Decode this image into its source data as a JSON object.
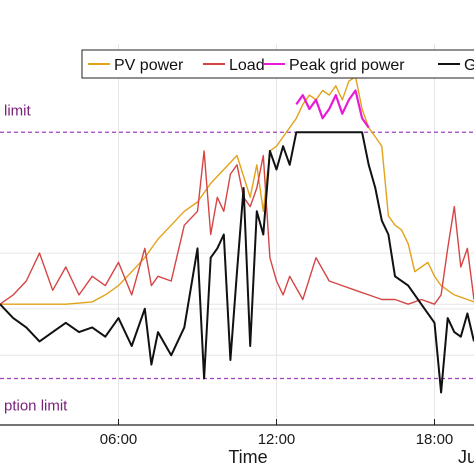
{
  "chart_data": {
    "type": "line",
    "xlabel": "Time",
    "x_tick_labels": [
      "06:00",
      "12:00",
      "18:00"
    ],
    "x_tick_hours": [
      6,
      12,
      18
    ],
    "date_fragment": "Ju",
    "xlim": [
      1.5,
      19.5
    ],
    "ylim": [
      -2.6,
      5.6
    ],
    "limits": [
      {
        "name": "upper-limit",
        "label": "limit",
        "value": 3.7,
        "color": "#a040c0"
      },
      {
        "name": "lower-limit",
        "label": "ption limit",
        "value": -1.6,
        "color": "#a040c0"
      }
    ],
    "gridlines_y": [
      -1.1,
      -0.1,
      0,
      1.1
    ],
    "legend": {
      "placement": "top",
      "entries": [
        {
          "name": "pv-power",
          "label": "PV power",
          "color": "#e3a21a"
        },
        {
          "name": "load",
          "label": "Load",
          "color": "#d64545"
        },
        {
          "name": "peak-grid-power",
          "label": "Peak grid power",
          "color": "#e81ad6"
        },
        {
          "name": "grid",
          "label": "G",
          "color": "#111111"
        }
      ]
    },
    "series": [
      {
        "name": "PV power",
        "color": "#e3a21a",
        "x": [
          1.5,
          4,
          5,
          5.5,
          6,
          6.5,
          7,
          7.5,
          8,
          8.5,
          9,
          9.5,
          10,
          10.5,
          11,
          11.25,
          11.5,
          11.75,
          12,
          12.25,
          12.5,
          12.75,
          13,
          13.25,
          13.5,
          13.75,
          14,
          14.25,
          14.5,
          14.75,
          15,
          15.25,
          15.5,
          15.75,
          16,
          16.25,
          16.5,
          16.75,
          17,
          17.25,
          17.5,
          17.75,
          18,
          18.25,
          18.5,
          18.75,
          19,
          19.25,
          19.5
        ],
        "y": [
          0,
          0,
          0.05,
          0.2,
          0.4,
          0.7,
          1.0,
          1.4,
          1.7,
          2.0,
          2.2,
          2.6,
          2.9,
          3.2,
          2.3,
          3.0,
          2.0,
          3.3,
          3.4,
          3.6,
          3.8,
          4.0,
          4.3,
          4.5,
          4.4,
          4.6,
          4.5,
          4.7,
          4.4,
          4.8,
          4.9,
          4.2,
          3.8,
          3.6,
          3.4,
          1.9,
          1.7,
          1.6,
          1.3,
          0.7,
          0.8,
          0.9,
          0.6,
          0.4,
          0.3,
          0.2,
          0.15,
          0.1,
          0.05
        ]
      },
      {
        "name": "Load",
        "color": "#d64545",
        "x": [
          1.5,
          2,
          2.5,
          3,
          3.5,
          4,
          4.5,
          5,
          5.5,
          6,
          6.5,
          7,
          7.25,
          7.5,
          8,
          8.5,
          9,
          9.25,
          9.5,
          9.75,
          10,
          10.25,
          10.5,
          10.75,
          11,
          11.25,
          11.5,
          11.75,
          12,
          12.25,
          12.5,
          13,
          13.5,
          14,
          14.5,
          15,
          15.5,
          16,
          16.5,
          17,
          17.5,
          18,
          18.25,
          18.5,
          18.75,
          19,
          19.25,
          19.5
        ],
        "y": [
          0,
          0.2,
          0.5,
          1.1,
          0.3,
          0.8,
          0.2,
          0.6,
          0.4,
          0.9,
          0.2,
          1.2,
          0.4,
          0.6,
          0.5,
          1.7,
          2.0,
          3.3,
          1.5,
          2.3,
          2.0,
          2.8,
          3.0,
          2.3,
          2.1,
          2.5,
          3.2,
          1.0,
          0.5,
          0.2,
          0.6,
          0.1,
          1.0,
          0.5,
          0.4,
          0.3,
          0.2,
          0.1,
          0.1,
          0.0,
          0.1,
          0.0,
          0.2,
          1.2,
          2.1,
          0.8,
          1.2,
          0.1
        ]
      },
      {
        "name": "Peak grid power",
        "color": "#e81ad6",
        "x": [
          12.75,
          13,
          13.25,
          13.5,
          13.75,
          14,
          14.25,
          14.5,
          14.75,
          15,
          15.25,
          15.5
        ],
        "y": [
          4.3,
          4.5,
          4.2,
          4.4,
          4.0,
          4.2,
          4.5,
          4.1,
          4.4,
          4.6,
          4.0,
          3.8
        ]
      },
      {
        "name": "Grid",
        "color": "#111111",
        "x": [
          1.5,
          2,
          2.5,
          3,
          3.5,
          4,
          4.5,
          5,
          5.5,
          6,
          6.5,
          7,
          7.25,
          7.5,
          8,
          8.5,
          9,
          9.25,
          9.5,
          9.75,
          10,
          10.25,
          10.5,
          10.75,
          11,
          11.25,
          11.5,
          11.75,
          12,
          12.25,
          12.5,
          12.75,
          13,
          13.5,
          14,
          14.5,
          15,
          15.25,
          15.5,
          15.75,
          16,
          16.25,
          16.5,
          17,
          17.5,
          18,
          18.25,
          18.5,
          18.75,
          19,
          19.25,
          19.5
        ],
        "y": [
          0,
          -0.3,
          -0.5,
          -0.8,
          -0.6,
          -0.4,
          -0.6,
          -0.5,
          -0.7,
          -0.3,
          -0.9,
          -0.1,
          -1.3,
          -0.6,
          -1.1,
          -0.5,
          1.2,
          -1.6,
          1.0,
          1.2,
          1.5,
          -1.2,
          0.7,
          2.5,
          -0.9,
          2.0,
          1.5,
          3.3,
          2.9,
          3.4,
          3.0,
          3.7,
          3.7,
          3.7,
          3.7,
          3.7,
          3.7,
          3.7,
          3.0,
          2.5,
          1.8,
          1.5,
          0.6,
          0.4,
          0.0,
          -0.4,
          -1.9,
          -0.3,
          -0.6,
          -0.7,
          -0.2,
          -0.8
        ]
      }
    ]
  }
}
